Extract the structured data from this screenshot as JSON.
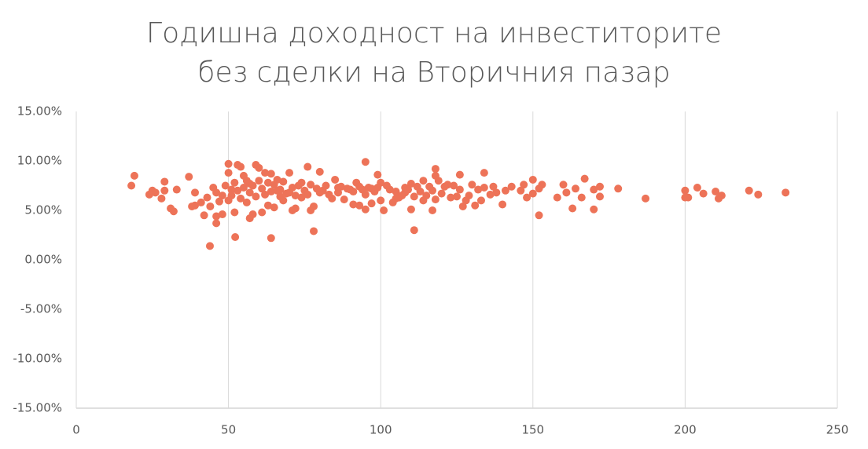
{
  "chart_data": {
    "type": "scatter",
    "title": "Годишна доходност на инвеститорите без сделки на Вторичния пазар",
    "color": "#ed7358",
    "x": [
      43.9,
      52.2,
      64.0,
      78.0,
      111.0,
      46,
      95.0,
      19.1,
      18.1,
      233,
      224,
      221,
      212,
      211,
      210,
      206,
      204,
      201,
      200,
      200,
      187,
      178,
      172,
      172,
      170,
      170,
      167,
      166,
      164,
      163,
      161,
      160,
      158,
      152,
      153,
      152,
      150,
      150,
      148,
      147,
      146,
      143,
      140,
      138,
      137,
      134,
      134,
      133,
      132,
      131,
      130,
      128,
      127,
      126,
      126,
      123,
      122,
      120,
      119,
      118,
      118,
      118,
      117,
      116,
      114,
      114,
      112,
      111,
      110,
      110,
      108,
      108,
      106,
      105,
      104,
      103,
      102,
      101,
      100,
      100,
      99,
      98,
      97,
      96,
      95,
      94,
      93,
      92,
      91,
      90,
      88,
      86,
      86,
      85,
      84,
      82,
      80,
      80,
      78,
      77,
      76,
      75,
      74,
      73,
      72,
      71,
      70,
      70,
      68,
      67,
      66,
      65,
      64,
      63,
      62,
      61,
      60,
      59,
      58,
      57,
      57,
      56,
      55,
      54,
      53,
      52,
      51,
      50,
      50,
      49,
      48,
      48,
      47,
      46,
      46,
      45,
      44,
      43,
      42,
      41,
      39,
      39,
      38,
      37,
      33,
      32,
      31,
      29,
      29,
      28,
      26,
      25,
      24,
      50,
      51,
      52,
      53,
      54,
      55,
      56,
      57,
      58,
      59,
      60,
      61,
      62,
      63,
      64,
      65,
      66,
      67,
      68,
      69,
      71,
      72,
      74,
      76,
      77,
      79,
      81,
      83,
      87,
      89,
      91,
      93,
      95,
      97,
      99,
      105,
      107,
      109,
      113,
      115,
      117,
      121,
      124,
      125,
      129,
      136,
      141
    ],
    "values": [
      1.4,
      2.3,
      2.2,
      2.9,
      3.0,
      3.7,
      9.9,
      8.5,
      7.5,
      6.8,
      6.6,
      7.0,
      6.5,
      6.2,
      6.9,
      6.7,
      7.3,
      6.3,
      7.0,
      6.3,
      6.2,
      7.2,
      6.4,
      7.4,
      5.1,
      7.1,
      8.2,
      6.3,
      7.2,
      5.2,
      6.8,
      7.6,
      6.3,
      4.5,
      7.6,
      7.2,
      8.1,
      6.7,
      6.3,
      7.6,
      7.0,
      7.4,
      5.6,
      6.8,
      7.4,
      8.8,
      7.3,
      6.0,
      7.1,
      5.5,
      7.6,
      6.0,
      5.4,
      7.1,
      8.6,
      6.3,
      7.6,
      6.7,
      8.0,
      9.2,
      8.5,
      6.1,
      5.0,
      7.4,
      8.0,
      6.0,
      7.4,
      6.4,
      7.7,
      5.1,
      6.8,
      7.3,
      6.3,
      6.9,
      5.8,
      7.1,
      7.5,
      5.0,
      7.8,
      6.0,
      8.6,
      6.9,
      5.7,
      7.3,
      5.1,
      7.1,
      5.5,
      7.8,
      5.6,
      7.1,
      6.1,
      7.3,
      6.8,
      8.1,
      6.2,
      7.5,
      8.9,
      6.8,
      5.4,
      5.0,
      9.4,
      7.0,
      6.3,
      7.5,
      5.2,
      5.0,
      8.8,
      6.8,
      6.0,
      7.1,
      8.1,
      5.3,
      8.7,
      5.5,
      8.8,
      4.8,
      9.3,
      9.6,
      4.6,
      4.2,
      7.7,
      5.8,
      8.5,
      9.4,
      9.6,
      4.8,
      7.1,
      9.7,
      8.8,
      7.5,
      4.6,
      6.5,
      5.9,
      4.4,
      6.8,
      7.3,
      5.4,
      6.3,
      4.5,
      5.8,
      5.5,
      6.8,
      5.4,
      8.4,
      7.1,
      4.9,
      5.2,
      7.9,
      7.0,
      6.2,
      6.8,
      7.0,
      6.6,
      6.0,
      6.5,
      7.8,
      7.0,
      6.2,
      7.3,
      8.0,
      6.8,
      7.5,
      6.4,
      8.0,
      7.2,
      6.6,
      7.8,
      6.9,
      7.6,
      7.0,
      6.4,
      7.9,
      6.7,
      7.3,
      6.5,
      7.8,
      6.6,
      7.6,
      7.2,
      7.0,
      6.6,
      7.4,
      7.2,
      6.9,
      7.4,
      6.6,
      7.2,
      7.3,
      6.2,
      6.5,
      7.1,
      6.9,
      6.5,
      7.0,
      7.4,
      7.5,
      6.4,
      6.5,
      6.6,
      7.0
    ],
    "xlim": [
      0,
      250
    ],
    "xticks": [
      0,
      50,
      100,
      150,
      200,
      250
    ],
    "ylim": [
      -15,
      15
    ],
    "yticks": [
      {
        "value": -15,
        "label": "-15.00%"
      },
      {
        "value": -10,
        "label": "-10.00%"
      },
      {
        "value": -5,
        "label": "-5.00%"
      },
      {
        "value": 0,
        "label": "0.00%"
      },
      {
        "value": 5,
        "label": "5.00%"
      },
      {
        "value": 10,
        "label": "10.00%"
      },
      {
        "value": 15,
        "label": "15.00%"
      }
    ],
    "grid": "x"
  }
}
